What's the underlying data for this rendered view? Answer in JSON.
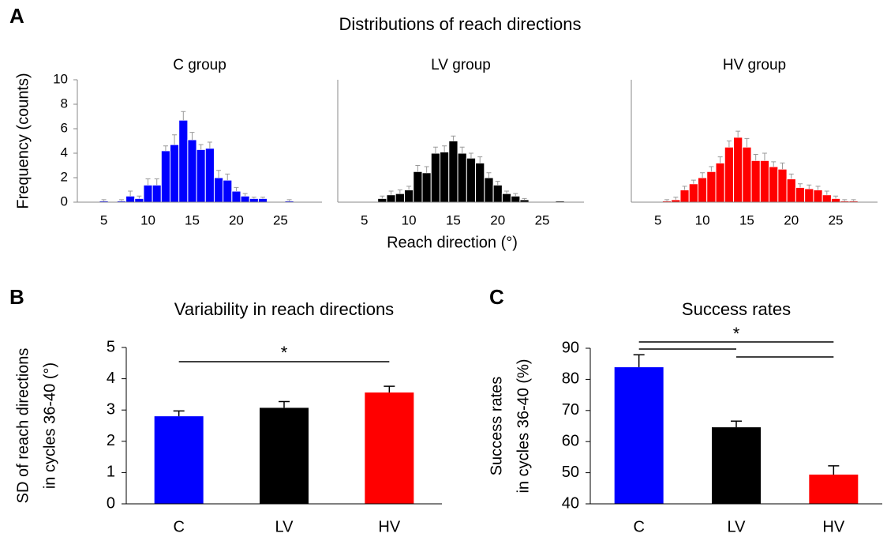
{
  "chart_data": [
    {
      "type": "histogram",
      "panel_label": "A",
      "title": "C group",
      "ylabel": "Frequency (counts)",
      "color": "#0000ff",
      "error_color": "#999999",
      "bins": [
        4.5,
        5.5,
        6.5,
        7.5,
        8.5,
        9.5,
        10.5,
        11.5,
        12.5,
        13.5,
        14.5,
        15.5,
        16.5,
        17.5,
        18.5,
        19.5,
        20.5,
        21.5,
        22.5,
        23.5,
        24.5,
        25.5,
        26.5,
        27.5
      ],
      "counts": [
        0.1,
        0,
        0.1,
        0.5,
        0.3,
        1.4,
        1.4,
        4.2,
        4.7,
        6.7,
        5.1,
        4.3,
        4.4,
        2.0,
        1.8,
        0.9,
        0.5,
        0.3,
        0.3,
        0,
        0,
        0.1,
        0
      ],
      "errors": [
        0.1,
        0,
        0.1,
        0.4,
        0.2,
        0.5,
        0.5,
        0.4,
        0.8,
        0.7,
        0.6,
        0.4,
        0.5,
        0.6,
        0.5,
        0.3,
        0.2,
        0.1,
        0.1,
        0,
        0,
        0.1,
        0
      ],
      "xlim": [
        2,
        29.7
      ],
      "xticks": [
        5,
        10,
        15,
        20,
        25
      ],
      "ylim": [
        0,
        10
      ],
      "yticks": [
        0,
        2,
        4,
        6,
        8,
        10
      ]
    },
    {
      "type": "histogram",
      "suptitle": "Distributions of reach directions",
      "title": "LV group",
      "xlabel": "Reach direction (°)",
      "color": "#000000",
      "error_color": "#999999",
      "bins": [
        4.5,
        5.5,
        6.5,
        7.5,
        8.5,
        9.5,
        10.5,
        11.5,
        12.5,
        13.5,
        14.5,
        15.5,
        16.5,
        17.5,
        18.5,
        19.5,
        20.5,
        21.5,
        22.5,
        23.5,
        24.5,
        25.5,
        26.5,
        27.5
      ],
      "counts": [
        0,
        0,
        0.3,
        0.6,
        0.7,
        1.0,
        2.5,
        2.4,
        4.0,
        4.1,
        5.0,
        4.0,
        3.6,
        3.2,
        2.0,
        1.4,
        0.7,
        0.5,
        0.2,
        0,
        0,
        0,
        0.1
      ],
      "errors": [
        0,
        0,
        0.2,
        0.3,
        0.3,
        0.3,
        0.5,
        0.5,
        0.5,
        0.5,
        0.4,
        0.5,
        0.4,
        0.5,
        0.4,
        0.3,
        0.2,
        0.2,
        0.1,
        0,
        0,
        0,
        0
      ],
      "xlim": [
        2,
        29.7
      ],
      "xticks": [
        5,
        10,
        15,
        20,
        25
      ],
      "ylim": [
        0,
        10
      ]
    },
    {
      "type": "histogram",
      "title": "HV group",
      "color": "#ff0000",
      "error_color": "#999999",
      "bins": [
        4.5,
        5.5,
        6.5,
        7.5,
        8.5,
        9.5,
        10.5,
        11.5,
        12.5,
        13.5,
        14.5,
        15.5,
        16.5,
        17.5,
        18.5,
        19.5,
        20.5,
        21.5,
        22.5,
        23.5,
        24.5,
        25.5,
        26.5,
        27.5
      ],
      "counts": [
        0,
        0.1,
        0.2,
        1.0,
        1.5,
        2.0,
        2.5,
        3.2,
        4.5,
        5.3,
        4.5,
        3.4,
        3.4,
        2.9,
        2.7,
        1.9,
        1.2,
        1.1,
        1.0,
        0.6,
        0.3,
        0.1,
        0.1
      ],
      "errors": [
        0,
        0.1,
        0.2,
        0.3,
        0.3,
        0.4,
        0.4,
        0.5,
        0.5,
        0.5,
        0.7,
        0.5,
        0.6,
        0.4,
        0.5,
        0.4,
        0.3,
        0.3,
        0.3,
        0.3,
        0.2,
        0.1,
        0.1
      ],
      "xlim": [
        2,
        29.7
      ],
      "xticks": [
        5,
        10,
        15,
        20,
        25
      ],
      "ylim": [
        0,
        10
      ]
    },
    {
      "type": "bar",
      "panel_label": "B",
      "title": "Variability in reach directions",
      "ylabel": [
        "SD of reach directions",
        "in cycles 36-40 (°)"
      ],
      "categories": [
        "C",
        "LV",
        "HV"
      ],
      "values": [
        2.8,
        3.07,
        3.56
      ],
      "errors": [
        0.17,
        0.2,
        0.2
      ],
      "colors": [
        "#0000ff",
        "#000000",
        "#ff0000"
      ],
      "ylim": [
        0,
        5
      ],
      "yticks": [
        0,
        1,
        2,
        3,
        4,
        5
      ],
      "annotation": "*"
    },
    {
      "type": "bar",
      "panel_label": "C",
      "title": "Success rates",
      "ylabel": [
        "Success rates",
        "in cycles 36-40 (%)"
      ],
      "categories": [
        "C",
        "LV",
        "HV"
      ],
      "values": [
        83.9,
        64.6,
        49.4
      ],
      "errors": [
        4,
        2,
        2.8
      ],
      "colors": [
        "#0000ff",
        "#000000",
        "#ff0000"
      ],
      "ylim": [
        40,
        90
      ],
      "yticks": [
        40,
        50,
        60,
        70,
        80,
        90
      ],
      "annotation": "*"
    }
  ]
}
